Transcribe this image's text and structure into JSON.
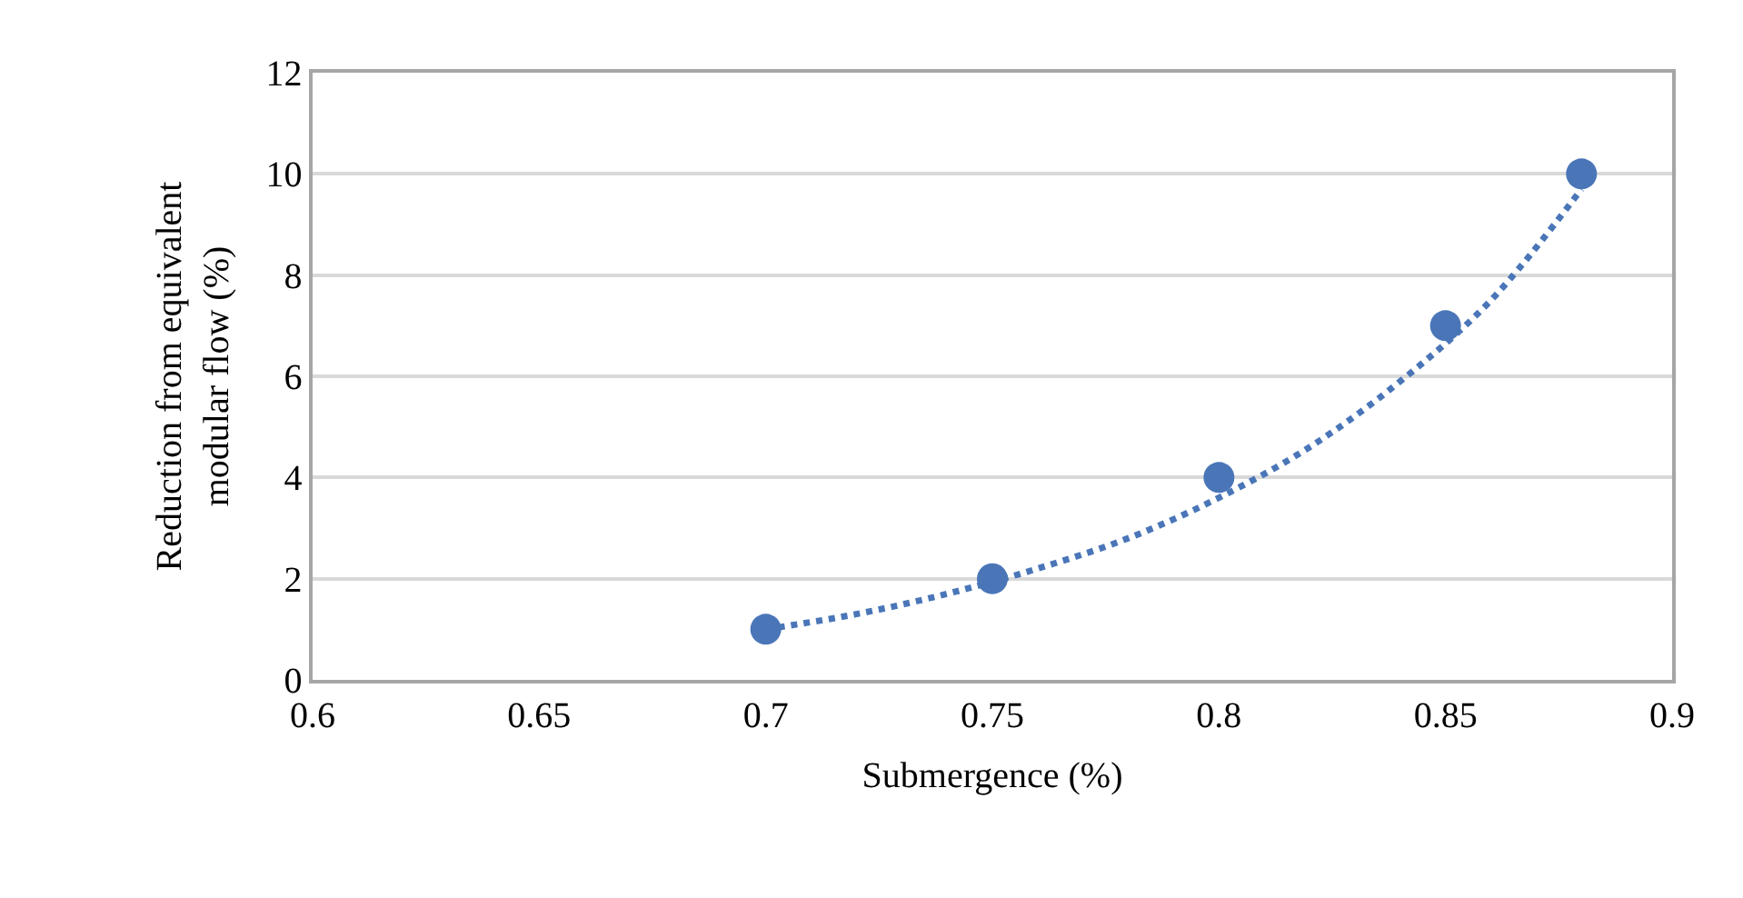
{
  "chart_data": {
    "type": "scatter",
    "xlabel": "Submergence (%)",
    "ylabel": "Reduction from equivalent modular flow (%)",
    "series": [
      {
        "color": "#4a76b8",
        "marker": "circle",
        "x": [
          0.7,
          0.75,
          0.8,
          0.85,
          0.88
        ],
        "values": [
          1,
          2,
          4,
          7,
          10
        ]
      },
      {
        "type": "line",
        "color": "#4a76b8",
        "line_style": "dotted",
        "marker": "none",
        "x": [
          0.7,
          0.72,
          0.74,
          0.76,
          0.78,
          0.8,
          0.82,
          0.84,
          0.86,
          0.88
        ],
        "values": [
          1.0,
          1.3,
          1.7,
          2.2,
          2.8,
          3.6,
          4.6,
          5.9,
          7.5,
          9.7
        ]
      }
    ],
    "xlim": [
      0.6,
      0.9
    ],
    "xticks": [
      0.6,
      0.65,
      0.7,
      0.75,
      0.8,
      0.85,
      0.9
    ],
    "ylim": [
      0,
      12
    ],
    "yticks": [
      0,
      2,
      4,
      6,
      8,
      10,
      12
    ],
    "grid": "y"
  }
}
